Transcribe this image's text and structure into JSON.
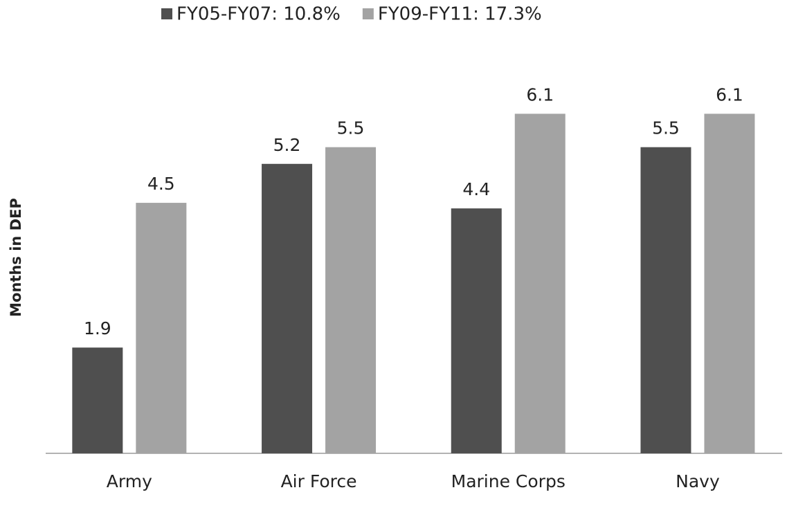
{
  "chart_data": {
    "type": "bar",
    "categories": [
      "Army",
      "Air Force",
      "Marine Corps",
      "Navy"
    ],
    "series": [
      {
        "name": "FY05-FY07:  10.8%",
        "color": "#4f4f4f",
        "values": [
          1.9,
          5.2,
          4.4,
          5.5
        ]
      },
      {
        "name": "FY09-FY11:  17.3%",
        "color": "#a3a3a3",
        "values": [
          4.5,
          5.5,
          6.1,
          6.1
        ]
      }
    ],
    "y_label": "Months in DEP",
    "ylim": [
      0,
      7
    ],
    "legend": "top"
  }
}
